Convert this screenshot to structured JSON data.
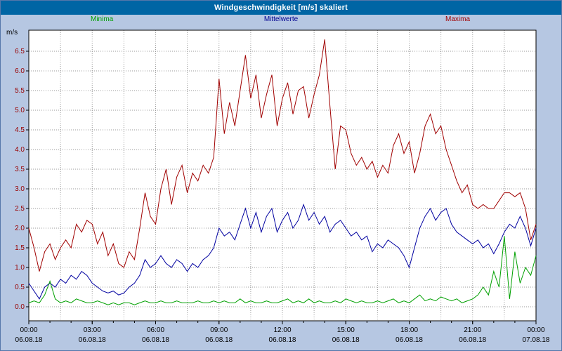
{
  "window": {
    "title": "Windgeschwindigkeit [m/s] skaliert"
  },
  "legend": [
    {
      "label": "Minima",
      "color": "#00a000"
    },
    {
      "label": "Mittelwerte",
      "color": "#000090"
    },
    {
      "label": "Maxima",
      "color": "#a00000"
    }
  ],
  "chart_data": {
    "type": "line",
    "title": "Windgeschwindigkeit [m/s] skaliert",
    "ylabel": "m/s",
    "ylim": [
      0,
      7
    ],
    "ytick_step": 0.5,
    "ytick_labels": [
      "0.0",
      "0.5",
      "1.0",
      "1.5",
      "2.0",
      "2.5",
      "3.0",
      "3.5",
      "4.0",
      "4.5",
      "5.0",
      "5.5",
      "6.0",
      "6.5"
    ],
    "xtick_hours": [
      0,
      3,
      6,
      9,
      12,
      15,
      18,
      21,
      24
    ],
    "xtick_labels": [
      "00:00",
      "03:00",
      "06:00",
      "09:00",
      "12:00",
      "15:00",
      "18:00",
      "21:00",
      "00:00"
    ],
    "xtick_dates": [
      "06.08.18",
      "06.08.18",
      "06.08.18",
      "06.08.18",
      "06.08.18",
      "06.08.18",
      "06.08.18",
      "06.08.18",
      "07.08.18"
    ],
    "sample_interval_minutes": 15,
    "grid": true,
    "legend_position": "top",
    "series": [
      {
        "name": "Minima",
        "color": "#00a000",
        "values": [
          0.1,
          0.15,
          0.1,
          0.3,
          0.65,
          0.2,
          0.1,
          0.15,
          0.1,
          0.2,
          0.15,
          0.1,
          0.1,
          0.15,
          0.1,
          0.05,
          0.1,
          0.05,
          0.1,
          0.1,
          0.05,
          0.1,
          0.15,
          0.1,
          0.1,
          0.15,
          0.1,
          0.1,
          0.15,
          0.1,
          0.1,
          0.1,
          0.15,
          0.1,
          0.1,
          0.15,
          0.1,
          0.15,
          0.1,
          0.1,
          0.2,
          0.1,
          0.15,
          0.1,
          0.1,
          0.15,
          0.1,
          0.1,
          0.15,
          0.2,
          0.1,
          0.15,
          0.1,
          0.2,
          0.1,
          0.15,
          0.1,
          0.1,
          0.15,
          0.1,
          0.2,
          0.15,
          0.1,
          0.15,
          0.1,
          0.1,
          0.15,
          0.1,
          0.15,
          0.2,
          0.1,
          0.15,
          0.1,
          0.2,
          0.3,
          0.15,
          0.2,
          0.15,
          0.25,
          0.2,
          0.15,
          0.2,
          0.1,
          0.15,
          0.2,
          0.3,
          0.5,
          0.3,
          0.9,
          0.5,
          1.8,
          0.2,
          1.4,
          0.6,
          1.0,
          0.8,
          1.3
        ]
      },
      {
        "name": "Mittelwerte",
        "color": "#0000a0",
        "values": [
          0.6,
          0.4,
          0.2,
          0.5,
          0.6,
          0.5,
          0.7,
          0.6,
          0.8,
          0.7,
          0.9,
          0.8,
          0.6,
          0.5,
          0.4,
          0.35,
          0.4,
          0.3,
          0.35,
          0.5,
          0.6,
          0.8,
          1.2,
          1.0,
          1.1,
          1.3,
          1.1,
          1.0,
          1.2,
          1.1,
          0.9,
          1.1,
          1.0,
          1.2,
          1.3,
          1.5,
          2.0,
          1.8,
          1.9,
          1.7,
          2.1,
          2.5,
          2.0,
          2.4,
          1.9,
          2.3,
          2.5,
          1.9,
          2.2,
          2.4,
          2.0,
          2.2,
          2.6,
          2.2,
          2.4,
          2.1,
          2.3,
          1.9,
          2.1,
          2.2,
          2.0,
          1.8,
          1.9,
          1.7,
          1.8,
          1.4,
          1.6,
          1.5,
          1.7,
          1.6,
          1.5,
          1.3,
          1.0,
          1.5,
          2.0,
          2.3,
          2.5,
          2.2,
          2.4,
          2.5,
          2.1,
          1.9,
          1.8,
          1.7,
          1.6,
          1.7,
          1.5,
          1.6,
          1.35,
          1.6,
          1.9,
          2.1,
          2.0,
          2.3,
          2.0,
          1.55,
          2.0
        ]
      },
      {
        "name": "Maxima",
        "color": "#a00000",
        "values": [
          2.0,
          1.5,
          0.9,
          1.4,
          1.6,
          1.2,
          1.5,
          1.7,
          1.5,
          2.1,
          1.9,
          2.2,
          2.1,
          1.6,
          1.9,
          1.3,
          1.6,
          1.1,
          1.0,
          1.4,
          1.2,
          2.0,
          2.9,
          2.3,
          2.1,
          3.0,
          3.5,
          2.6,
          3.3,
          3.6,
          2.9,
          3.4,
          3.2,
          3.6,
          3.4,
          3.8,
          5.8,
          4.4,
          5.2,
          4.6,
          5.5,
          6.4,
          5.3,
          5.9,
          4.8,
          5.4,
          5.9,
          4.6,
          5.3,
          5.7,
          4.9,
          5.5,
          5.6,
          4.8,
          5.4,
          5.9,
          6.8,
          5.1,
          3.5,
          4.6,
          4.5,
          3.9,
          3.6,
          3.8,
          3.5,
          3.7,
          3.3,
          3.6,
          3.4,
          4.1,
          4.4,
          3.9,
          4.2,
          3.4,
          3.9,
          4.6,
          4.9,
          4.4,
          4.6,
          4.0,
          3.6,
          3.2,
          2.9,
          3.1,
          2.6,
          2.5,
          2.6,
          2.5,
          2.5,
          2.7,
          2.9,
          2.9,
          2.8,
          2.9,
          2.5,
          1.7,
          2.1
        ]
      }
    ]
  }
}
